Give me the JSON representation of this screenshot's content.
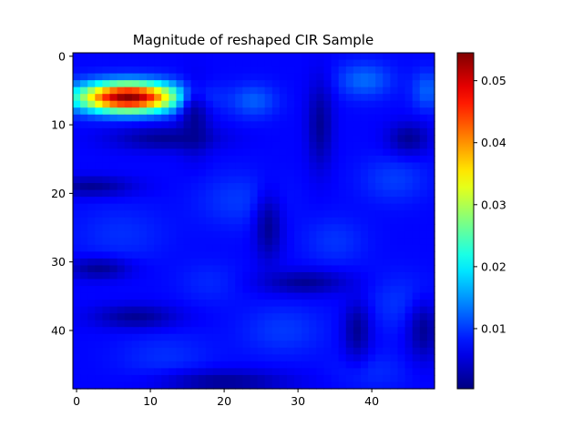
{
  "chart_data": {
    "type": "heatmap",
    "title": "Magnitude of reshaped CIR Sample",
    "xlabel": "",
    "ylabel": "",
    "grid": false,
    "colormap": "jet",
    "grid_size": [
      49,
      49
    ],
    "x_range": [
      -0.5,
      48.5
    ],
    "y_range": [
      -0.5,
      48.5
    ],
    "y_inverted": true,
    "x_ticks": [
      0,
      10,
      20,
      30,
      40
    ],
    "y_ticks": [
      0,
      10,
      20,
      30,
      40
    ],
    "colorbar": {
      "range": [
        0.0003,
        0.0545
      ],
      "ticks": [
        0.01,
        0.02,
        0.03,
        0.04,
        0.05
      ],
      "tick_labels": [
        "0.01",
        "0.02",
        "0.03",
        "0.04",
        "0.05"
      ]
    },
    "value_range": [
      0.0003,
      0.0545
    ],
    "background_level": 0.0072,
    "features": [
      {
        "kind": "peak",
        "center": [
          7,
          6
        ],
        "spread": [
          4.8,
          1.5
        ],
        "value": 0.0468
      },
      {
        "kind": "blob",
        "center": [
          39,
          3.5
        ],
        "spread": [
          2.6,
          1.8
        ],
        "value": 0.0055
      },
      {
        "kind": "blob",
        "center": [
          24,
          6.5
        ],
        "spread": [
          2.2,
          1.7
        ],
        "value": 0.0048
      },
      {
        "kind": "blob",
        "center": [
          47.5,
          5
        ],
        "spread": [
          1.4,
          2.0
        ],
        "value": 0.005
      },
      {
        "kind": "blob",
        "center": [
          43,
          18
        ],
        "spread": [
          3.2,
          2.4
        ],
        "value": 0.003
      },
      {
        "kind": "blob",
        "center": [
          22,
          21
        ],
        "spread": [
          4.0,
          2.8
        ],
        "value": 0.0028
      },
      {
        "kind": "blob",
        "center": [
          35,
          27
        ],
        "spread": [
          3.0,
          2.5
        ],
        "value": 0.0025
      },
      {
        "kind": "blob",
        "center": [
          6,
          26
        ],
        "spread": [
          4.5,
          3.0
        ],
        "value": 0.0022
      },
      {
        "kind": "blob",
        "center": [
          28,
          40
        ],
        "spread": [
          4.0,
          2.6
        ],
        "value": 0.0028
      },
      {
        "kind": "blob",
        "center": [
          44,
          36
        ],
        "spread": [
          3.5,
          3.0
        ],
        "value": 0.0025
      },
      {
        "kind": "blob",
        "center": [
          12,
          44
        ],
        "spread": [
          4.5,
          2.6
        ],
        "value": 0.0022
      },
      {
        "kind": "blob",
        "center": [
          40,
          46
        ],
        "spread": [
          3.5,
          2.0
        ],
        "value": 0.002
      },
      {
        "kind": "blob",
        "center": [
          18,
          33
        ],
        "spread": [
          3.0,
          2.2
        ],
        "value": 0.0018
      }
    ],
    "dark_valleys": [
      {
        "center": [
          16,
          9
        ],
        "spread": [
          1.4,
          3.5
        ]
      },
      {
        "center": [
          12,
          12
        ],
        "spread": [
          5.0,
          1.2
        ]
      },
      {
        "center": [
          2,
          19
        ],
        "spread": [
          4.0,
          1.0
        ]
      },
      {
        "center": [
          33,
          10
        ],
        "spread": [
          1.2,
          4.5
        ]
      },
      {
        "center": [
          45,
          12
        ],
        "spread": [
          2.0,
          1.6
        ]
      },
      {
        "center": [
          31,
          33
        ],
        "spread": [
          4.0,
          1.2
        ]
      },
      {
        "center": [
          3,
          31
        ],
        "spread": [
          3.0,
          1.1
        ]
      },
      {
        "center": [
          26,
          25
        ],
        "spread": [
          1.3,
          3.5
        ]
      },
      {
        "center": [
          20,
          47.5
        ],
        "spread": [
          6.0,
          1.2
        ]
      },
      {
        "center": [
          38,
          40
        ],
        "spread": [
          1.3,
          3.0
        ]
      },
      {
        "center": [
          8,
          38
        ],
        "spread": [
          4.0,
          1.2
        ]
      },
      {
        "center": [
          47,
          40
        ],
        "spread": [
          1.5,
          3.0
        ]
      }
    ]
  }
}
